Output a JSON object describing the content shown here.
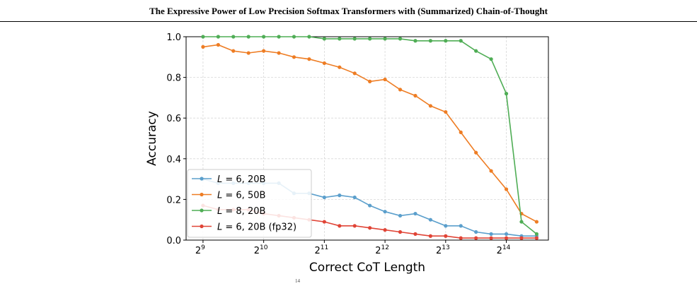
{
  "header": {
    "title": "The Expressive Power of Low Precision Softmax Transformers with (Summarized) Chain-of-Thought"
  },
  "footer_fragment": "14",
  "chart_data": {
    "type": "line",
    "xlabel": "Correct CoT Length",
    "ylabel": "Accuracy",
    "x_scale": "log2",
    "xlim": [
      422,
      26500
    ],
    "ylim": [
      0.0,
      1.0
    ],
    "grid": true,
    "legend_position": "lower-left",
    "x_ticks": [
      {
        "base": "2",
        "exp": "9",
        "value": 512
      },
      {
        "base": "2",
        "exp": "10",
        "value": 1024
      },
      {
        "base": "2",
        "exp": "11",
        "value": 2048
      },
      {
        "base": "2",
        "exp": "12",
        "value": 4096
      },
      {
        "base": "2",
        "exp": "13",
        "value": 8192
      },
      {
        "base": "2",
        "exp": "14",
        "value": 16384
      }
    ],
    "y_ticks": [
      "0.0",
      "0.2",
      "0.4",
      "0.6",
      "0.8",
      "1.0"
    ],
    "x": [
      512,
      609,
      724,
      861,
      1024,
      1218,
      1448,
      1722,
      2048,
      2436,
      2896,
      3444,
      4096,
      4871,
      5793,
      6889,
      8192,
      9742,
      11585,
      13777,
      16384,
      19484,
      23170
    ],
    "series": [
      {
        "name": "L = 6, 20B",
        "legend_var": "L",
        "legend_rest": " = 6, 20B",
        "color": "#5b9fcc",
        "values": [
          0.3,
          0.28,
          0.28,
          0.28,
          0.28,
          0.28,
          0.23,
          0.23,
          0.21,
          0.22,
          0.21,
          0.17,
          0.14,
          0.12,
          0.13,
          0.1,
          0.07,
          0.07,
          0.04,
          0.03,
          0.03,
          0.02,
          0.02
        ]
      },
      {
        "name": "L = 6, 50B",
        "legend_var": "L",
        "legend_rest": " = 6, 50B",
        "color": "#ee7d24",
        "values": [
          0.95,
          0.96,
          0.93,
          0.92,
          0.93,
          0.92,
          0.9,
          0.89,
          0.87,
          0.85,
          0.82,
          0.78,
          0.79,
          0.74,
          0.71,
          0.66,
          0.63,
          0.53,
          0.43,
          0.34,
          0.25,
          0.13,
          0.09
        ]
      },
      {
        "name": "L = 8, 20B",
        "legend_var": "L",
        "legend_rest": " = 8, 20B",
        "color": "#4fad55",
        "values": [
          1.0,
          1.0,
          1.0,
          1.0,
          1.0,
          1.0,
          1.0,
          1.0,
          0.99,
          0.99,
          0.99,
          0.99,
          0.99,
          0.99,
          0.98,
          0.98,
          0.98,
          0.98,
          0.93,
          0.89,
          0.72,
          0.09,
          0.03
        ]
      },
      {
        "name": "L = 6, 20B (fp32)",
        "legend_var": "L",
        "legend_rest": " = 6, 20B (fp32)",
        "color": "#e04436",
        "values": [
          0.17,
          0.15,
          0.15,
          0.15,
          0.13,
          0.12,
          0.11,
          0.1,
          0.09,
          0.07,
          0.07,
          0.06,
          0.05,
          0.04,
          0.03,
          0.02,
          0.02,
          0.01,
          0.01,
          0.01,
          0.01,
          0.01,
          0.01
        ]
      }
    ]
  }
}
